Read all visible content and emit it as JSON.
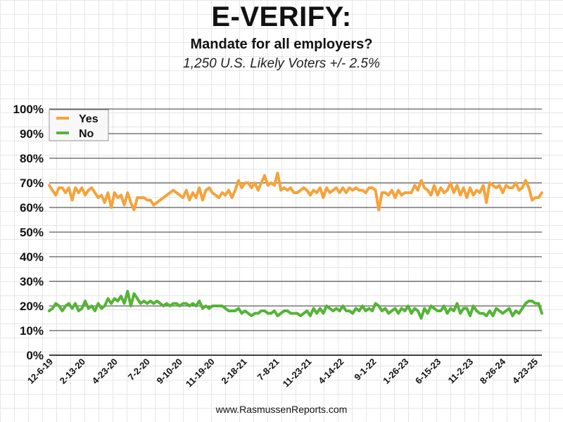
{
  "chart_data": {
    "type": "line",
    "title": "E-VERIFY:",
    "subtitle": "Mandate for all employers?",
    "subtitle2": "1,250 U.S. Likely Voters +/- 2.5%",
    "footer": "www.RasmussenReports.com",
    "ylim": [
      0,
      100
    ],
    "y_ticks": [
      "0%",
      "10%",
      "20%",
      "30%",
      "40%",
      "50%",
      "60%",
      "70%",
      "80%",
      "90%",
      "100%"
    ],
    "x_ticks": [
      "12-6-19",
      "2-13-20",
      "4-23-20",
      "7-2-20",
      "9-10-20",
      "11-19-20",
      "2-18-21",
      "7-8-21",
      "11-23-21",
      "4-14-22",
      "9-1-22",
      "1-26-23",
      "6-15-23",
      "11-2-23",
      "8-26-24",
      "4-23-25"
    ],
    "grid": true,
    "legend_position": "top-left",
    "series": [
      {
        "name": "Yes",
        "color": "#F5A33A",
        "values": [
          69,
          67,
          65,
          68,
          68,
          66,
          68,
          63,
          68,
          66,
          68,
          65,
          67,
          68,
          66,
          64,
          65,
          62,
          66,
          60,
          66,
          64,
          65,
          61,
          66,
          62,
          59,
          64,
          64,
          64,
          63,
          63,
          61,
          62,
          63,
          64,
          65,
          66,
          67,
          66,
          65,
          64,
          67,
          63,
          66,
          64,
          68,
          63,
          67,
          68,
          66,
          65,
          64,
          66,
          65,
          67,
          64,
          67,
          71,
          68,
          70,
          70,
          68,
          70,
          67,
          70,
          73,
          69,
          70,
          69,
          74,
          67,
          68,
          67,
          68,
          66,
          66,
          67,
          68,
          67,
          65,
          67,
          66,
          68,
          64,
          68,
          66,
          67,
          68,
          66,
          68,
          66,
          68,
          67,
          68,
          67,
          67,
          66,
          68,
          68,
          67,
          59,
          66,
          66,
          65,
          67,
          64,
          67,
          65,
          66,
          66,
          66,
          69,
          67,
          71,
          68,
          67,
          65,
          69,
          65,
          68,
          66,
          67,
          70,
          66,
          69,
          65,
          68,
          64,
          68,
          65,
          67,
          66,
          69,
          62,
          70,
          69,
          68,
          69,
          66,
          69,
          68,
          68,
          70,
          67,
          68,
          71,
          68,
          63,
          64,
          64,
          66
        ]
      },
      {
        "name": "No",
        "color": "#55B436",
        "values": [
          18,
          19,
          21,
          20,
          18,
          20,
          21,
          19,
          21,
          18,
          19,
          22,
          19,
          20,
          18,
          21,
          19,
          20,
          23,
          21,
          23,
          22,
          24,
          21,
          26,
          20,
          25,
          23,
          21,
          22,
          21,
          22,
          21,
          22,
          21,
          20,
          21,
          20,
          21,
          21,
          20,
          21,
          21,
          20,
          21,
          20,
          22,
          19,
          20,
          19,
          20,
          20,
          20,
          20,
          19,
          18,
          18,
          18,
          19,
          17,
          18,
          17,
          16,
          17,
          17,
          18,
          18,
          17,
          17,
          18,
          16,
          17,
          18,
          18,
          17,
          17,
          17,
          16,
          17,
          18,
          16,
          19,
          17,
          19,
          17,
          20,
          19,
          18,
          19,
          18,
          20,
          18,
          18,
          17,
          19,
          18,
          20,
          18,
          19,
          18,
          21,
          20,
          18,
          19,
          17,
          18,
          19,
          17,
          19,
          18,
          20,
          17,
          19,
          18,
          15,
          19,
          17,
          20,
          19,
          18,
          18,
          20,
          17,
          19,
          18,
          21,
          17,
          19,
          19,
          16,
          20,
          18,
          17,
          17,
          16,
          18,
          16,
          19,
          18,
          17,
          18,
          19,
          16,
          18,
          17,
          19,
          21,
          22,
          22,
          21,
          21,
          17
        ]
      }
    ]
  }
}
